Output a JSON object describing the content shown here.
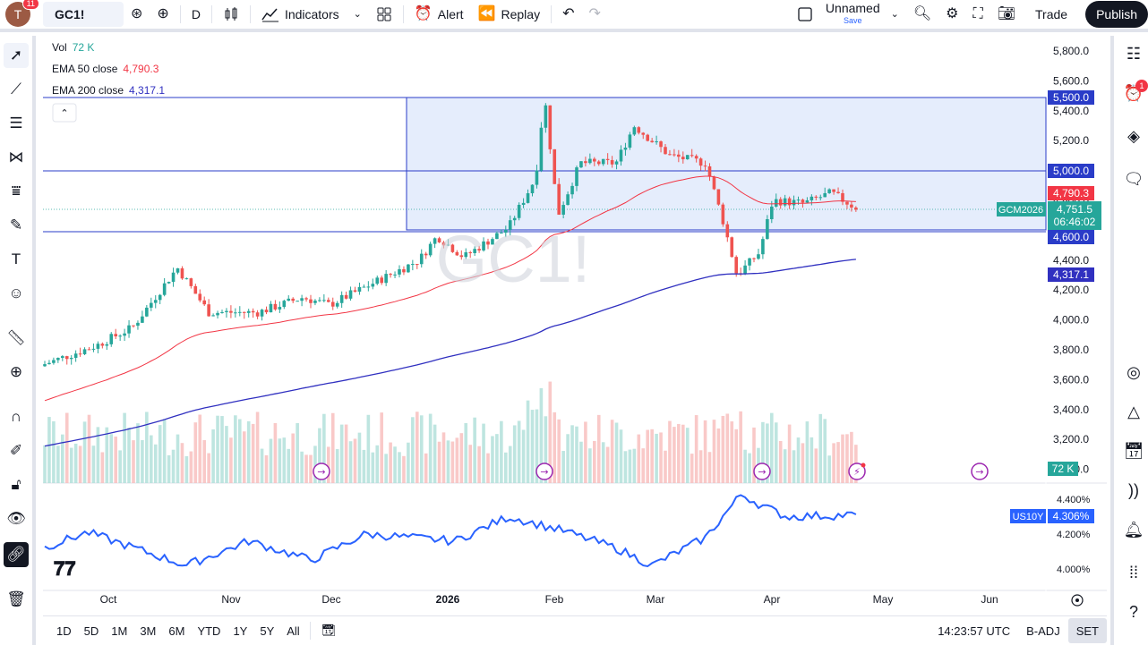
{
  "topbar": {
    "avatar_letter": "T",
    "avatar_badge": "11",
    "symbol": "GC1!",
    "interval": "D",
    "indicators_label": "Indicators",
    "alert_label": "Alert",
    "replay_label": "Replay",
    "layout_name": "Unnamed",
    "layout_save": "Save",
    "trade_label": "Trade",
    "publish_label": "Publish"
  },
  "legend": {
    "vol_label": "Vol",
    "vol_value": "72 K",
    "ema50_label": "EMA 50 close",
    "ema50_value": "4,790.3",
    "ema200_label": "EMA 200 close",
    "ema200_value": "4,317.1"
  },
  "watermark": "GC1!",
  "price_axis": {
    "ticks": [
      "5,800.0",
      "5,600.0",
      "5,400.0",
      "5,200.0",
      "5,000.0",
      "4,800.0",
      "4,600.0",
      "4,400.0",
      "4,200.0",
      "4,000.0",
      "3,800.0",
      "3,600.0",
      "3,400.0",
      "3,200.0",
      "3,000.0"
    ],
    "labels": {
      "level_5500": "5,500.0",
      "level_5000": "5,000.0",
      "level_4600": "4,600.0",
      "ema50": "4,790.3",
      "price": "4,751.5",
      "countdown": "06:46:02",
      "ema200": "4,317.1",
      "volume": "72 K"
    },
    "contract_tag": "GCM2026"
  },
  "indicator_pane": {
    "symbol_tag": "US10Y",
    "value": "4.306%",
    "ticks": [
      "4.400%",
      "4.200%",
      "4.000%"
    ]
  },
  "time_axis": [
    "Oct",
    "Nov",
    "Dec",
    "2026",
    "Feb",
    "Mar",
    "Apr",
    "May",
    "Jun"
  ],
  "bottombar": {
    "ranges": [
      "1D",
      "5D",
      "1M",
      "3M",
      "6M",
      "YTD",
      "1Y",
      "5Y",
      "All"
    ],
    "clock": "14:23:57 UTC",
    "adj": "B-ADJ",
    "session": "SET"
  },
  "rightbar": {
    "alerts_badge": "1"
  },
  "colors": {
    "up": "#26a69a",
    "down": "#ef5350",
    "ema50": "#f23645",
    "ema200": "#3030c0",
    "hline": "#2a3cc8",
    "rect_fill": "#e5edfc",
    "us10y": "#2962ff"
  },
  "chart_data": {
    "type": "candlestick",
    "symbol": "GC1!",
    "interval": "1D",
    "horizontal_levels": [
      5500,
      5000,
      4600
    ],
    "zone": [
      4600,
      5500
    ],
    "last_price": 4751.5,
    "ema50_last": 4790.3,
    "ema200_last": 4317.1,
    "y_range": [
      3000,
      5900
    ],
    "us10y_last": 4.306
  }
}
